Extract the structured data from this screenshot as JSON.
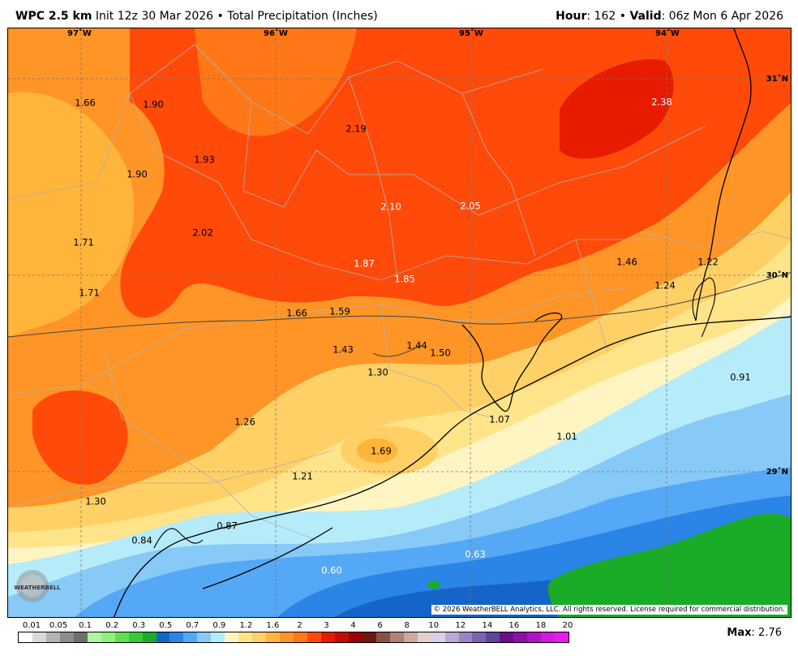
{
  "header": {
    "model": "WPC 2.5 km",
    "init": "Init 12z 30 Mar 2026",
    "bullet": "•",
    "product": "Total Precipitation (Inches)",
    "hour_label": "Hour",
    "hour_value": ": 162",
    "valid_label": "Valid",
    "valid_value": ": 06z Mon 6 Apr 2026"
  },
  "map": {
    "lon_labels": [
      "97˚W",
      "96˚W",
      "95˚W",
      "94˚W"
    ],
    "lat_labels": [
      "31˚N",
      "30˚N",
      "29˚N"
    ],
    "values": [
      "1.66",
      "1.90",
      "2.19",
      "2.38",
      "1.93",
      "1.90",
      "2.10",
      "2.05",
      "1.71",
      "2.02",
      "1.87",
      "1.85",
      "1.46",
      "1.22",
      "1.24",
      "1.71",
      "1.66",
      "1.59",
      "1.43",
      "1.44",
      "1.50",
      "1.30",
      "0.91",
      "1.26",
      "1.07",
      "1.01",
      "1.69",
      "1.21",
      "1.30",
      "0.87",
      "0.84",
      "0.63",
      "0.60"
    ],
    "copyright": "© 2026 WeatherBELL Analytics, LLC. All rights reserved. License required for commercial distribution.",
    "logo_text": "WEATHERBELL"
  },
  "colorbar": {
    "labels": [
      "0.01",
      "0.05",
      "0.1",
      "0.2",
      "0.3",
      "0.5",
      "0.7",
      "0.9",
      "1.2",
      "1.6",
      "2",
      "3",
      "4",
      "6",
      "8",
      "10",
      "12",
      "14",
      "16",
      "18",
      "20"
    ],
    "colors": [
      "#ffffff",
      "#d9d9d9",
      "#b3b3b3",
      "#8c8c8c",
      "#6e6e6e",
      "#aef5a0",
      "#8ff07a",
      "#5fe051",
      "#37c93a",
      "#1aab27",
      "#1565c8",
      "#2a85e6",
      "#55a8f5",
      "#87c9f7",
      "#b6ebfa",
      "#fff5c2",
      "#ffe48a",
      "#ffd066",
      "#ffb43a",
      "#ff9526",
      "#ff7716",
      "#ff4a0a",
      "#e81a00",
      "#c50c00",
      "#9b0000",
      "#6a1a10",
      "#8a5040",
      "#b0807a",
      "#cca8a2",
      "#e3cfcb",
      "#d9d0e6",
      "#b8a8d6",
      "#9a84c4",
      "#7c62b0",
      "#5f4596",
      "#6a0e8a",
      "#8a10a8",
      "#b012c8",
      "#d01ae0",
      "#e81af0"
    ]
  },
  "max": {
    "label": "Max",
    "value": ": 2.76"
  }
}
